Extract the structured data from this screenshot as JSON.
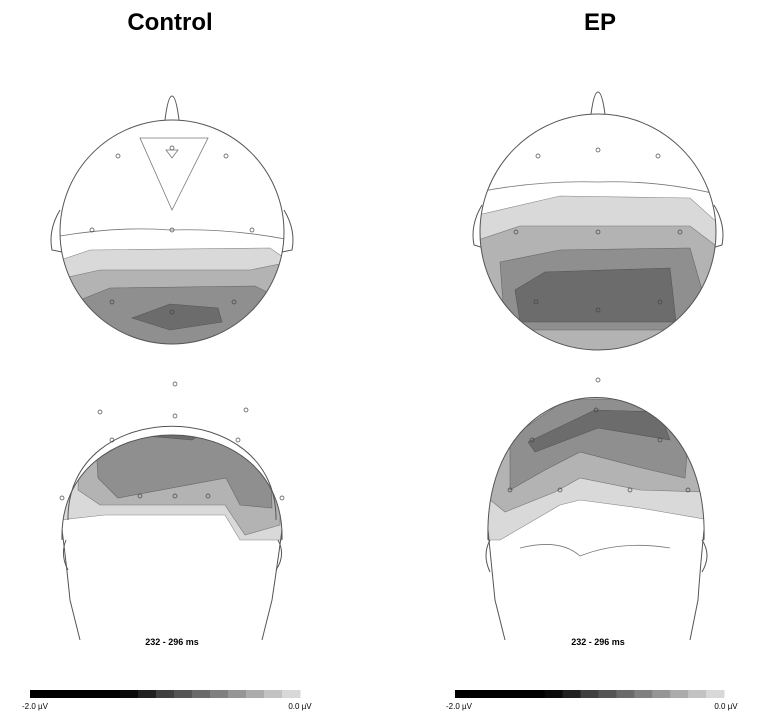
{
  "panels": [
    {
      "title": "Control",
      "time_label": "232 - 296 ms",
      "scale_min_label": "-2.0 µV",
      "scale_max_label": "0.0 µV"
    },
    {
      "title": "EP",
      "time_label": "232 - 296 ms",
      "scale_min_label": "-2.0 µV",
      "scale_max_label": "0.0 µV"
    }
  ]
}
